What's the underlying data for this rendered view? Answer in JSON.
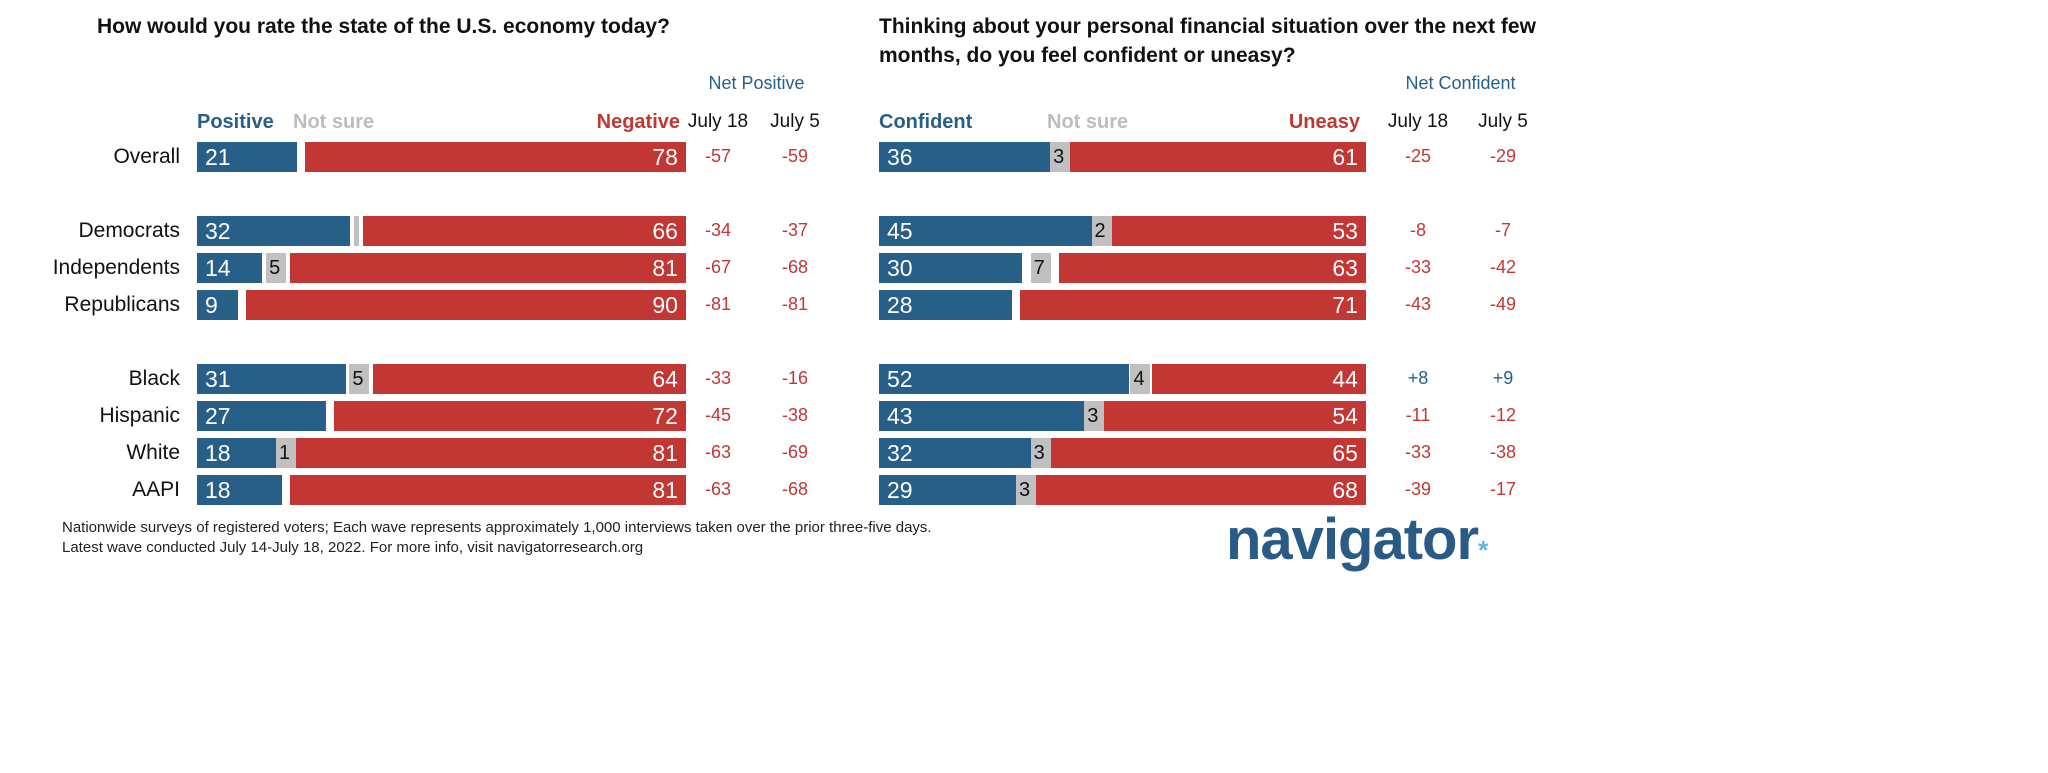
{
  "chart_data": [
    {
      "type": "bar",
      "title": "How would you rate the state of the U.S. economy today?",
      "legend": [
        "Positive",
        "Not sure",
        "Negative"
      ],
      "net_header": "Net Positive",
      "net_columns": [
        "July 18",
        "July 5"
      ],
      "colors": {
        "positive": "#285f88",
        "not_sure": "#c0c0c0",
        "negative": "#c23633"
      },
      "rows": [
        {
          "label": "Overall",
          "positive": 21,
          "not_sure": 1,
          "not_sure_label": "",
          "negative": 78,
          "net": [
            "-57",
            "-59"
          ],
          "group": 0
        },
        {
          "label": "Democrats",
          "positive": 32,
          "not_sure": 2,
          "not_sure_label": "",
          "negative": 66,
          "net": [
            "-34",
            "-37"
          ],
          "group": 1
        },
        {
          "label": "Independents",
          "positive": 14,
          "not_sure": 5,
          "not_sure_label": "5",
          "negative": 81,
          "net": [
            "-67",
            "-68"
          ],
          "group": 1
        },
        {
          "label": "Republicans",
          "positive": 9,
          "not_sure": 1,
          "not_sure_label": "",
          "negative": 90,
          "net": [
            "-81",
            "-81"
          ],
          "group": 1
        },
        {
          "label": "Black",
          "positive": 31,
          "not_sure": 5,
          "not_sure_label": "5",
          "negative": 64,
          "net": [
            "-33",
            "-16"
          ],
          "group": 2
        },
        {
          "label": "Hispanic",
          "positive": 27,
          "not_sure": 1,
          "not_sure_label": "",
          "negative": 72,
          "net": [
            "-45",
            "-38"
          ],
          "group": 2
        },
        {
          "label": "White",
          "positive": 18,
          "not_sure": 1,
          "not_sure_label": "1",
          "negative": 81,
          "net": [
            "-63",
            "-69"
          ],
          "group": 2
        },
        {
          "label": "AAPI",
          "positive": 18,
          "not_sure": 1,
          "not_sure_label": "",
          "negative": 81,
          "net": [
            "-63",
            "-68"
          ],
          "group": 2
        }
      ]
    },
    {
      "type": "bar",
      "title": "Thinking about your personal financial situation over the next few months, do you feel confident or uneasy?",
      "title_lines": [
        "Thinking about your personal financial situation over the next few",
        "months, do you feel confident or uneasy?"
      ],
      "legend": [
        "Confident",
        "Not sure",
        "Uneasy"
      ],
      "net_header": "Net Confident",
      "net_columns": [
        "July 18",
        "July 5"
      ],
      "colors": {
        "positive": "#285f88",
        "not_sure": "#c0c0c0",
        "negative": "#c23633"
      },
      "rows": [
        {
          "label": "Overall",
          "positive": 36,
          "not_sure": 3,
          "not_sure_label": "3",
          "negative": 61,
          "net": [
            "-25",
            "-29"
          ],
          "group": 0
        },
        {
          "label": "Democrats",
          "positive": 45,
          "not_sure": 2,
          "not_sure_label": "2",
          "negative": 53,
          "net": [
            "-8",
            "-7"
          ],
          "group": 1
        },
        {
          "label": "Independents",
          "positive": 30,
          "not_sure": 7,
          "not_sure_label": "7",
          "negative": 63,
          "net": [
            "-33",
            "-42"
          ],
          "group": 1
        },
        {
          "label": "Republicans",
          "positive": 28,
          "not_sure": 1,
          "not_sure_label": "",
          "negative": 71,
          "net": [
            "-43",
            "-49"
          ],
          "group": 1
        },
        {
          "label": "Black",
          "positive": 52,
          "not_sure": 4,
          "not_sure_label": "4",
          "negative": 44,
          "net": [
            "+8",
            "+9"
          ],
          "group": 2
        },
        {
          "label": "Hispanic",
          "positive": 43,
          "not_sure": 3,
          "not_sure_label": "3",
          "negative": 54,
          "net": [
            "-11",
            "-12"
          ],
          "group": 2
        },
        {
          "label": "White",
          "positive": 32,
          "not_sure": 3,
          "not_sure_label": "3",
          "negative": 65,
          "net": [
            "-33",
            "-38"
          ],
          "group": 2
        },
        {
          "label": "AAPI",
          "positive": 29,
          "not_sure": 3,
          "not_sure_label": "3",
          "negative": 68,
          "net": [
            "-39",
            "-17"
          ],
          "group": 2
        }
      ]
    }
  ],
  "footnote": [
    "Nationwide surveys of registered voters; Each wave represents approximately 1,000 interviews taken over the prior three-five days.",
    "Latest wave conducted July 14-July 18, 2022. For more info, visit navigatorresearch.org"
  ],
  "logo": "navigator"
}
